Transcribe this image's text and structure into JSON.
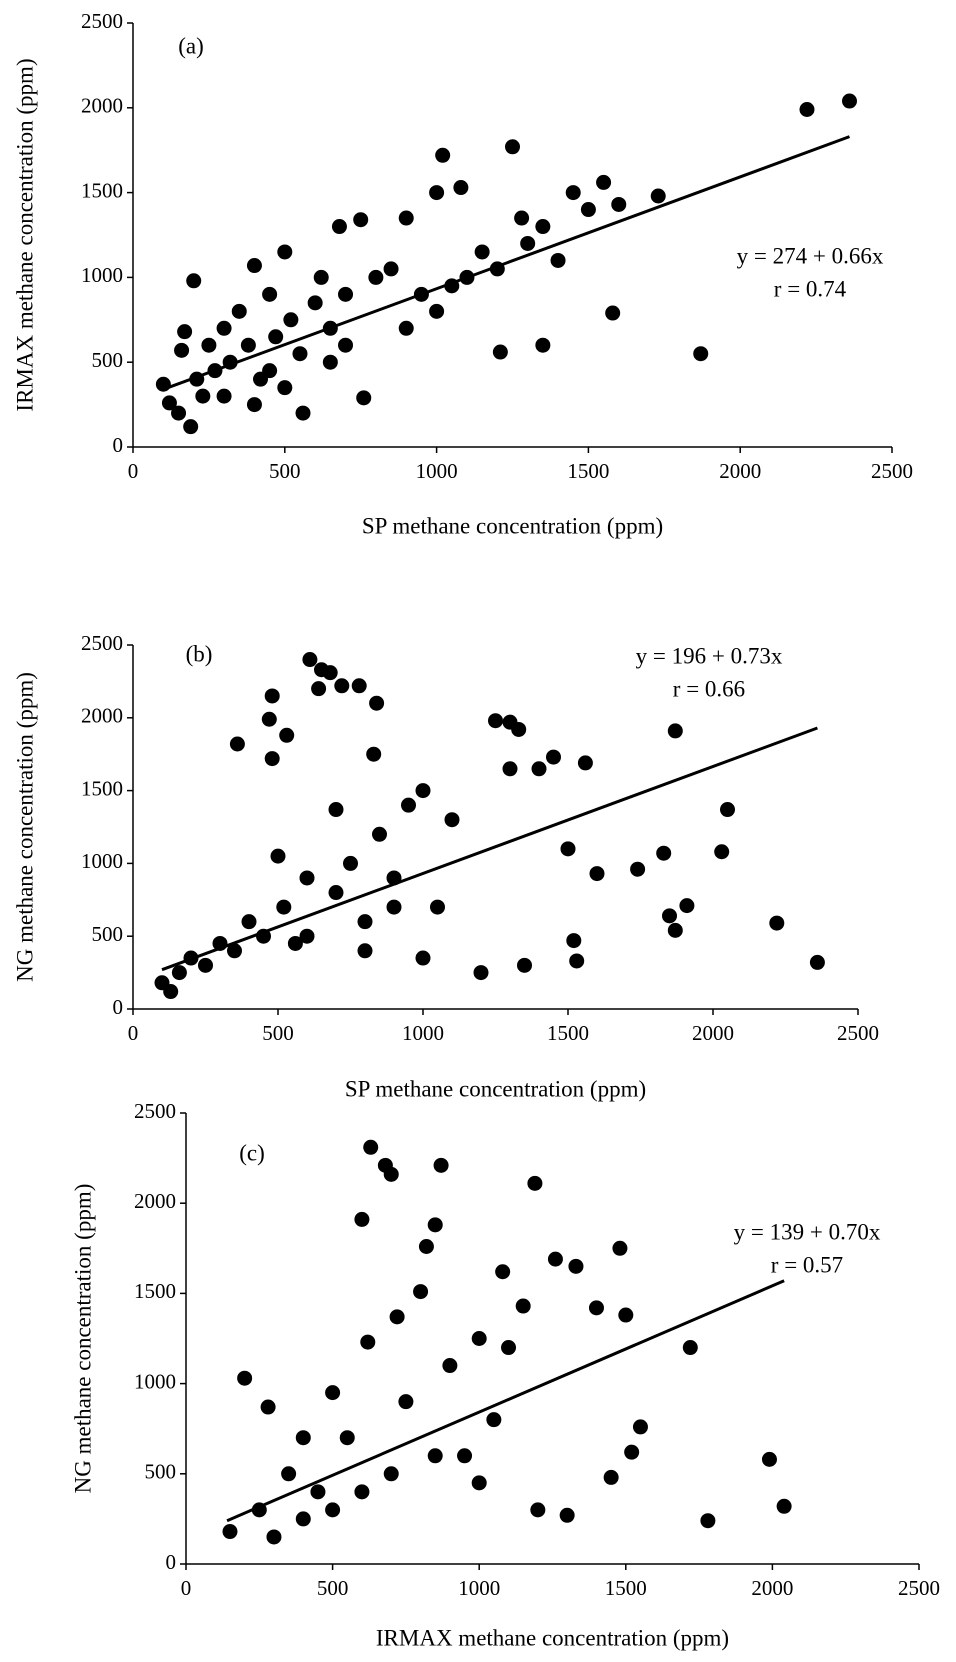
{
  "chart_data": [
    {
      "type": "scatter",
      "panel_label": "(a)",
      "xlabel": "SP methane concentration (ppm)",
      "ylabel": "IRMAX methane concentration (ppm)",
      "annotations": [
        "y = 274 + 0.66x",
        "r = 0.74"
      ],
      "color": "#000000",
      "xlim": [
        0,
        2500
      ],
      "ylim": [
        0,
        2500
      ],
      "xticks": [
        0,
        500,
        1000,
        1500,
        2000,
        2500
      ],
      "yticks": [
        0,
        500,
        1000,
        1500,
        2000,
        2500
      ],
      "x": [
        100,
        120,
        150,
        160,
        170,
        190,
        200,
        210,
        230,
        250,
        270,
        300,
        320,
        350,
        380,
        400,
        420,
        450,
        470,
        500,
        520,
        550,
        560,
        600,
        620,
        650,
        680,
        700,
        750,
        760,
        800,
        850,
        900,
        950,
        1000,
        1020,
        1050,
        1080,
        1100,
        1150,
        1200,
        1210,
        1250,
        1280,
        1300,
        1350,
        1350,
        1400,
        1450,
        1500,
        1550,
        1580,
        1600,
        1730,
        1870,
        2220,
        2360,
        300,
        450,
        500,
        700,
        900,
        1000,
        650,
        400
      ],
      "y": [
        370,
        260,
        200,
        570,
        680,
        120,
        980,
        400,
        300,
        600,
        450,
        700,
        500,
        800,
        600,
        1070,
        400,
        900,
        650,
        1150,
        750,
        550,
        200,
        850,
        1000,
        700,
        1300,
        900,
        1340,
        290,
        1000,
        1050,
        1350,
        900,
        1500,
        1720,
        950,
        1530,
        1000,
        1150,
        1050,
        560,
        1770,
        1350,
        1200,
        1300,
        600,
        1100,
        1500,
        1400,
        1560,
        790,
        1430,
        1480,
        550,
        1990,
        2040,
        300,
        450,
        350,
        600,
        700,
        800,
        500,
        250
      ],
      "trendline": {
        "x": [
          100,
          2360
        ],
        "y": [
          340,
          1830
        ]
      }
    },
    {
      "type": "scatter",
      "panel_label": "(b)",
      "xlabel": "SP methane concentration (ppm)",
      "ylabel": "NG methane concentration (ppm)",
      "annotations": [
        "y = 196 + 0.73x",
        "r = 0.66"
      ],
      "color": "#000000",
      "xlim": [
        0,
        2500
      ],
      "ylim": [
        0,
        2500
      ],
      "xticks": [
        0,
        500,
        1000,
        1500,
        2000,
        2500
      ],
      "yticks": [
        0,
        500,
        1000,
        1500,
        2000,
        2500
      ],
      "x": [
        100,
        130,
        160,
        200,
        250,
        300,
        350,
        360,
        400,
        450,
        470,
        480,
        480,
        500,
        520,
        530,
        560,
        600,
        610,
        640,
        650,
        680,
        700,
        720,
        750,
        780,
        800,
        830,
        840,
        850,
        900,
        950,
        1000,
        1050,
        1100,
        1200,
        1250,
        1300,
        1330,
        1300,
        1350,
        1400,
        1450,
        1500,
        1520,
        1530,
        1560,
        1600,
        1740,
        1830,
        1850,
        1870,
        1870,
        1910,
        2030,
        2050,
        2220,
        2360,
        600,
        800,
        1000,
        900,
        700
      ],
      "y": [
        180,
        120,
        250,
        350,
        300,
        450,
        400,
        1820,
        600,
        500,
        1990,
        2150,
        1720,
        1050,
        700,
        1880,
        450,
        900,
        2400,
        2200,
        2330,
        2310,
        1370,
        2220,
        1000,
        2220,
        600,
        1750,
        2100,
        1200,
        900,
        1400,
        1500,
        700,
        1300,
        250,
        1980,
        1970,
        1920,
        1650,
        300,
        1650,
        1730,
        1100,
        470,
        330,
        1690,
        930,
        960,
        1070,
        640,
        540,
        1910,
        710,
        1080,
        1370,
        590,
        320,
        500,
        400,
        350,
        700,
        800
      ],
      "trendline": {
        "x": [
          100,
          2360
        ],
        "y": [
          270,
          1930
        ]
      }
    },
    {
      "type": "scatter",
      "panel_label": "(c)",
      "xlabel": "IRMAX methane concentration (ppm)",
      "ylabel": "NG methane concentration (ppm)",
      "annotations": [
        "y = 139 + 0.70x",
        "r = 0.57"
      ],
      "color": "#000000",
      "xlim": [
        0,
        2500
      ],
      "ylim": [
        0,
        2500
      ],
      "xticks": [
        0,
        500,
        1000,
        1500,
        2000,
        2500
      ],
      "yticks": [
        0,
        500,
        1000,
        1500,
        2000,
        2500
      ],
      "x": [
        150,
        200,
        250,
        280,
        300,
        350,
        400,
        450,
        500,
        550,
        600,
        620,
        630,
        680,
        700,
        720,
        750,
        800,
        820,
        850,
        870,
        900,
        950,
        1000,
        1050,
        1080,
        1100,
        1150,
        1190,
        1200,
        1260,
        1300,
        1330,
        1400,
        1450,
        1480,
        1500,
        1520,
        1550,
        1720,
        1780,
        1990,
        2040,
        500,
        700,
        850,
        1000,
        600,
        400
      ],
      "y": [
        180,
        1030,
        300,
        870,
        150,
        500,
        700,
        400,
        950,
        700,
        1910,
        1230,
        2310,
        2210,
        2160,
        1370,
        900,
        1510,
        1760,
        1880,
        2210,
        1100,
        600,
        1250,
        800,
        1620,
        1200,
        1430,
        2110,
        300,
        1690,
        270,
        1650,
        1420,
        480,
        1750,
        1380,
        620,
        760,
        1200,
        240,
        580,
        320,
        300,
        500,
        600,
        450,
        400,
        250
      ],
      "trendline": {
        "x": [
          140,
          2040
        ],
        "y": [
          240,
          1570
        ]
      }
    }
  ]
}
